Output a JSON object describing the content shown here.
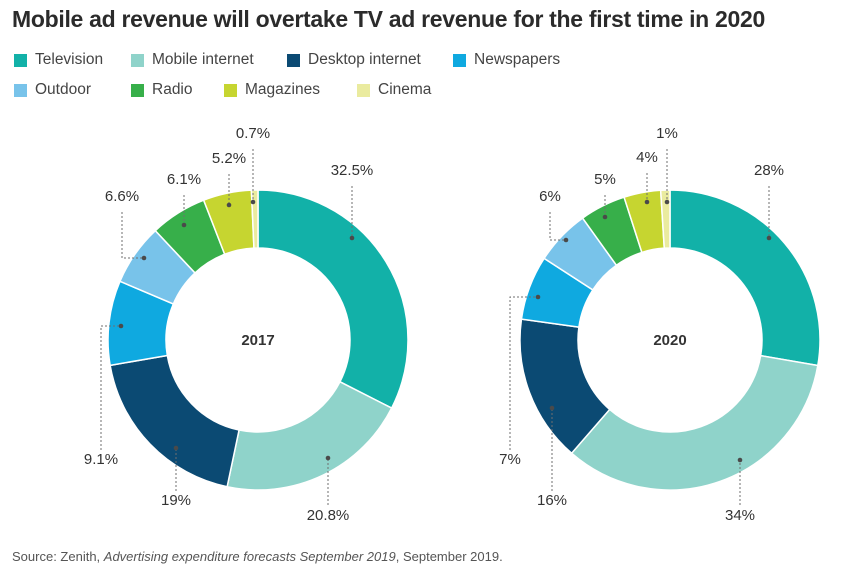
{
  "title": "Mobile ad revenue will overtake TV ad revenue for the first time in 2020",
  "colors": {
    "Television": "#12b1a8",
    "Mobile internet": "#8fd3ca",
    "Desktop internet": "#0b4a73",
    "Newspapers": "#0fa9e0",
    "Outdoor": "#78c3ea",
    "Radio": "#37af4a",
    "Magazines": "#c6d530",
    "Cinema": "#eaeb9f"
  },
  "legend": [
    "Television",
    "Mobile internet",
    "Desktop internet",
    "Newspapers",
    "Outdoor",
    "Radio",
    "Magazines",
    "Cinema"
  ],
  "chart_data": {
    "type": "pie",
    "style": "donut",
    "categories": [
      "Television",
      "Mobile internet",
      "Desktop internet",
      "Newspapers",
      "Outdoor",
      "Radio",
      "Magazines",
      "Cinema"
    ],
    "series": [
      {
        "name": "2017",
        "values": [
          32.5,
          20.8,
          19,
          9.1,
          6.6,
          6.1,
          5.2,
          0.7
        ],
        "labels": [
          "32.5%",
          "20.8%",
          "19%",
          "9.1%",
          "6.6%",
          "6.1%",
          "5.2%",
          "0.7%"
        ]
      },
      {
        "name": "2020",
        "values": [
          28,
          34,
          16,
          7,
          6,
          5,
          4,
          1
        ],
        "labels": [
          "28%",
          "34%",
          "16%",
          "7%",
          "6%",
          "5%",
          "4%",
          "1%"
        ]
      }
    ]
  },
  "source": {
    "prefix": "Source: Zenith, ",
    "publication": "Advertising expenditure forecasts September 2019",
    "suffix": ", September 2019."
  }
}
